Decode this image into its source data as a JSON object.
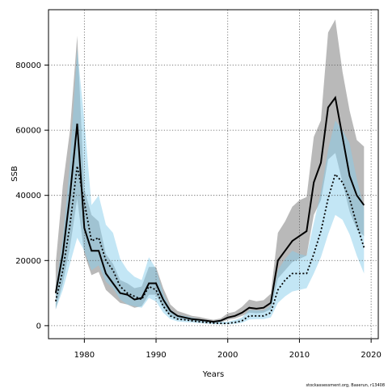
{
  "chart_data": {
    "type": "line",
    "xlabel": "Years",
    "ylabel": "SSB",
    "xlim": [
      1975,
      2021
    ],
    "ylim": [
      -4000,
      97000
    ],
    "x_ticks": [
      1980,
      1990,
      2000,
      2010,
      2020
    ],
    "y_ticks": [
      0,
      20000,
      40000,
      60000,
      80000
    ],
    "y_tick_labels": [
      "0",
      "20000",
      "40000",
      "60000",
      "80000"
    ],
    "grid": true,
    "credit": "stockassessment.org, Baserun, r13408",
    "colors": {
      "band_grey": "#8a8a8a",
      "band_blue": "#87ceeb",
      "line": "#000000"
    },
    "series": [
      {
        "style": "solid",
        "x": [
          1976,
          1977,
          1978,
          1979,
          1980,
          1981,
          1982,
          1983,
          1984,
          1985,
          1986,
          1987,
          1988,
          1989,
          1990,
          1991,
          1992,
          1993,
          1994,
          1995,
          1996,
          1997,
          1998,
          1999,
          2000,
          2001,
          2002,
          2003,
          2004,
          2005,
          2006,
          2007,
          2008,
          2009,
          2010,
          2011,
          2012,
          2013,
          2014,
          2015,
          2016,
          2017,
          2018,
          2019
        ],
        "values": [
          10000,
          22000,
          40000,
          62000,
          30000,
          23000,
          23000,
          16000,
          13000,
          10000,
          9500,
          8000,
          8500,
          13000,
          13000,
          8000,
          4500,
          3000,
          2500,
          2000,
          1800,
          1500,
          1200,
          1500,
          2500,
          3000,
          4000,
          5500,
          5200,
          5500,
          7000,
          20000,
          23000,
          26000,
          27500,
          29000,
          44000,
          50000,
          67000,
          70000,
          58000,
          46000,
          40000,
          37000
        ],
        "lower": [
          5000,
          13000,
          24000,
          39000,
          22000,
          15500,
          16500,
          11000,
          9000,
          7000,
          6500,
          5500,
          6000,
          9500,
          9500,
          5500,
          3000,
          2000,
          1800,
          1400,
          1200,
          1000,
          800,
          1000,
          1800,
          2200,
          3000,
          4000,
          3800,
          4000,
          5000,
          14500,
          17000,
          19500,
          20500,
          21500,
          34000,
          38500,
          51000,
          53000,
          44000,
          35000,
          29500,
          27500
        ],
        "upper": [
          19000,
          43000,
          60000,
          89000,
          42000,
          34000,
          32000,
          22000,
          19000,
          14000,
          13000,
          11500,
          12000,
          18000,
          18000,
          11500,
          6500,
          4500,
          3800,
          3000,
          2700,
          2200,
          1800,
          2200,
          3800,
          4300,
          5800,
          8000,
          7500,
          7800,
          9800,
          28500,
          32000,
          36500,
          38500,
          39500,
          58000,
          63000,
          90000,
          94000,
          78000,
          66000,
          57000,
          55000
        ]
      },
      {
        "style": "dotted",
        "x": [
          1976,
          1977,
          1978,
          1979,
          1980,
          1981,
          1982,
          1983,
          1984,
          1985,
          1986,
          1987,
          1988,
          1989,
          1990,
          1991,
          1992,
          1993,
          1994,
          1995,
          1996,
          1997,
          1998,
          1999,
          2000,
          2001,
          2002,
          2003,
          2004,
          2005,
          2006,
          2007,
          2008,
          2009,
          2010,
          2011,
          2012,
          2013,
          2014,
          2015,
          2016,
          2017,
          2018,
          2019
        ],
        "values": [
          7500,
          17000,
          31000,
          49000,
          38000,
          26000,
          27000,
          20000,
          17000,
          12000,
          10000,
          9000,
          8000,
          12000,
          11000,
          6000,
          3000,
          2000,
          1800,
          1500,
          1200,
          1000,
          800,
          700,
          700,
          1000,
          1500,
          3000,
          3000,
          3000,
          4000,
          11000,
          14000,
          16000,
          16000,
          16000,
          22000,
          29000,
          39000,
          46500,
          44000,
          39000,
          31000,
          24000
        ],
        "lower": [
          5000,
          11000,
          19000,
          27000,
          23000,
          17000,
          18500,
          13500,
          11500,
          8000,
          6500,
          6000,
          5500,
          8500,
          7500,
          4000,
          2000,
          1300,
          1100,
          1000,
          800,
          650,
          500,
          450,
          450,
          600,
          900,
          1900,
          2000,
          2000,
          2500,
          7000,
          9000,
          10500,
          11000,
          11500,
          16000,
          21000,
          28000,
          34000,
          32500,
          28000,
          21500,
          16000
        ],
        "upper": [
          11500,
          26500,
          50000,
          85000,
          63000,
          37000,
          40000,
          31000,
          28500,
          20500,
          17000,
          15000,
          14000,
          21000,
          17500,
          10000,
          5000,
          3300,
          3000,
          2500,
          2000,
          1600,
          1300,
          1200,
          1200,
          1700,
          2500,
          4800,
          4700,
          4600,
          6200,
          17000,
          20500,
          23000,
          22000,
          21500,
          31500,
          41000,
          54000,
          63000,
          60000,
          56000,
          45000,
          36000
        ]
      }
    ]
  }
}
